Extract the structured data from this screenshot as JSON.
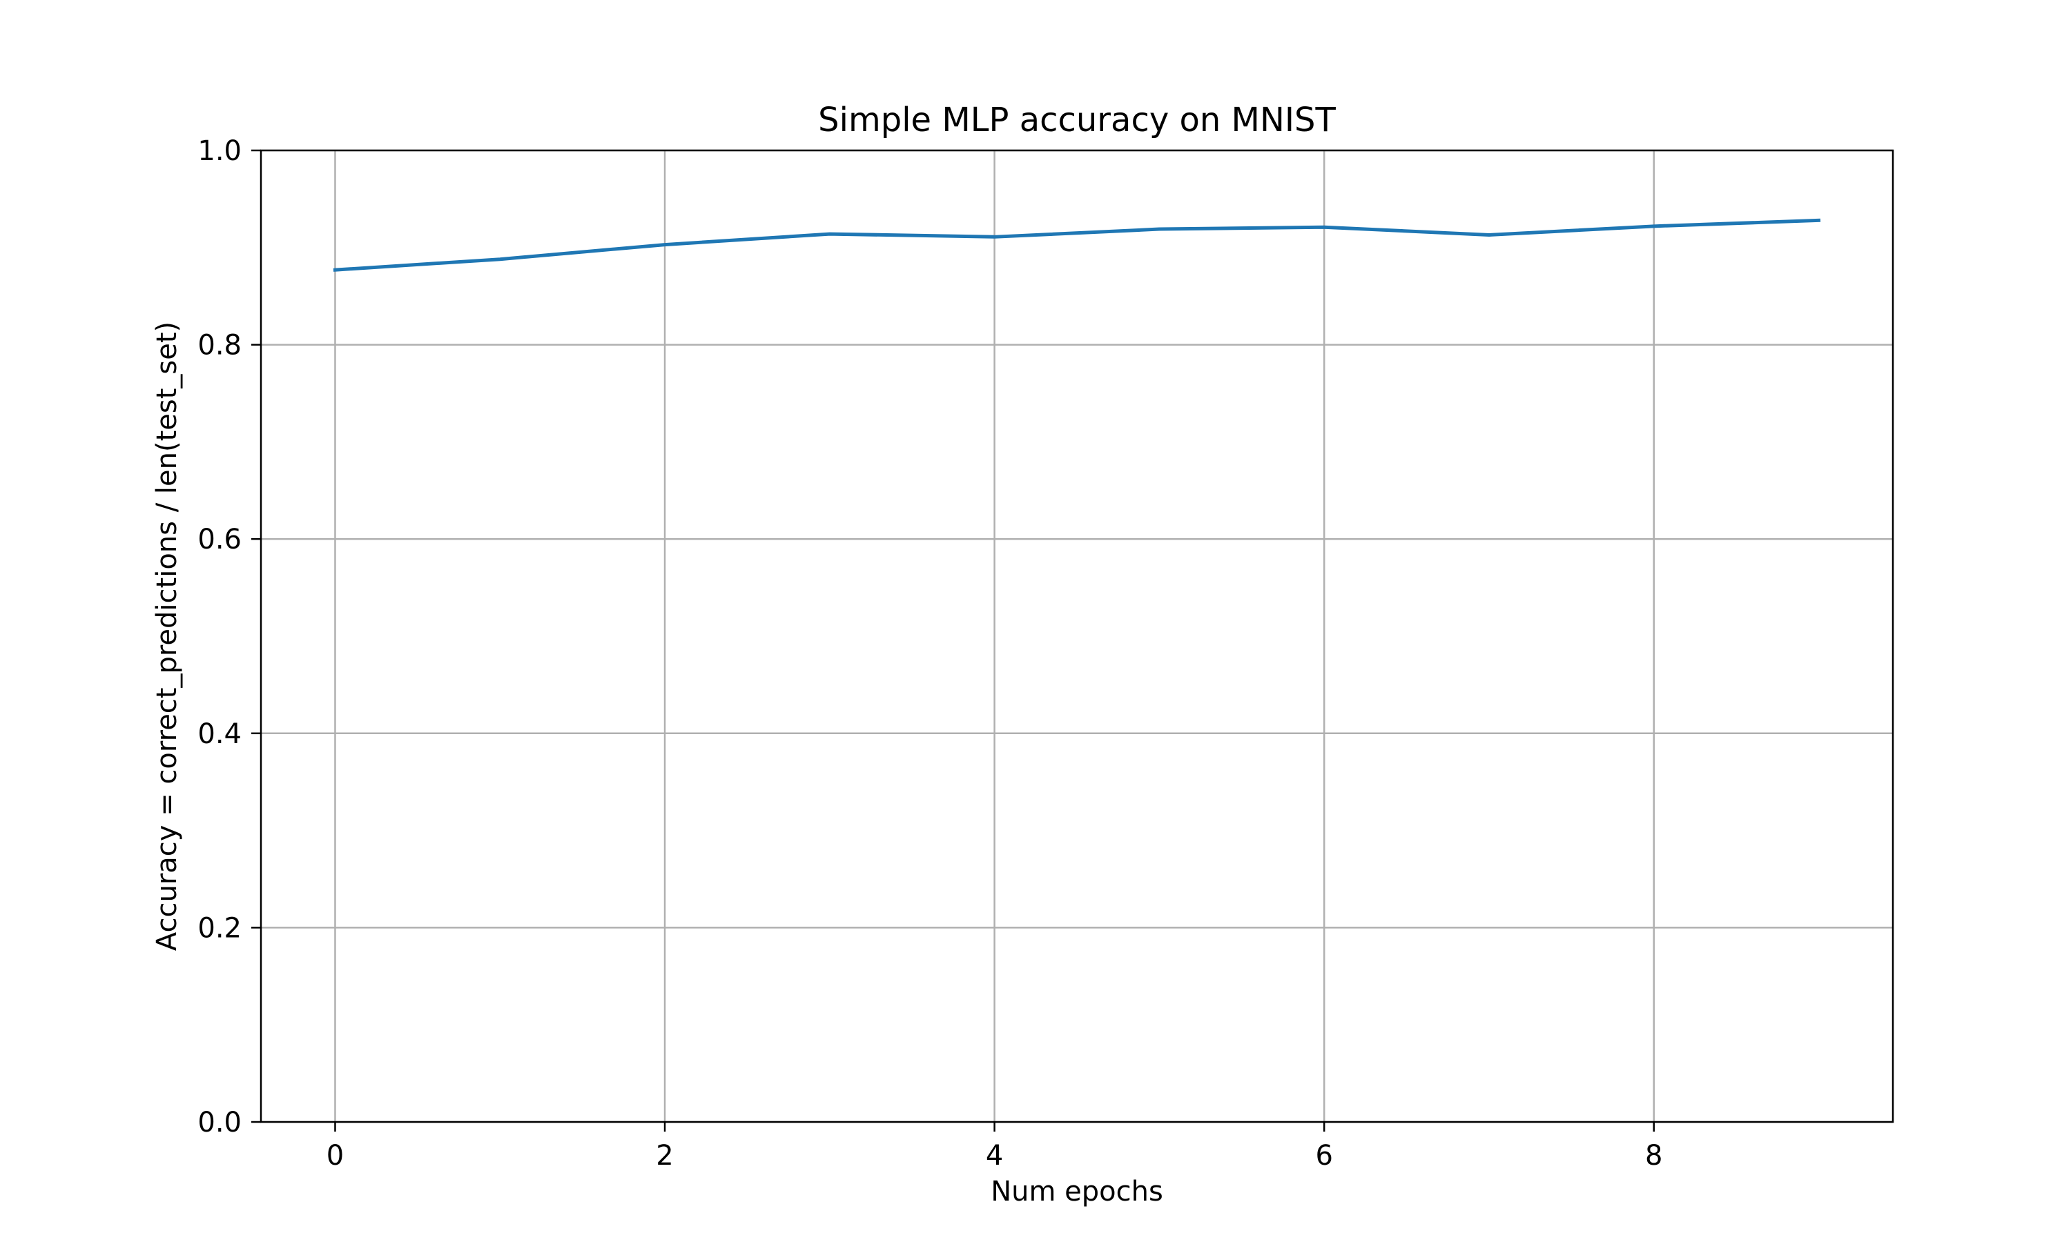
{
  "chart_data": {
    "type": "line",
    "title": "Simple MLP accuracy on MNIST",
    "xlabel": "Num epochs",
    "ylabel": "Accuracy = correct_predictions / len(test_set)",
    "x": [
      0,
      1,
      2,
      3,
      4,
      5,
      6,
      7,
      8,
      9
    ],
    "series": [
      {
        "name": "accuracy",
        "color": "#1f77b4",
        "values": [
          0.877,
          0.888,
          0.903,
          0.914,
          0.911,
          0.919,
          0.921,
          0.913,
          0.922,
          0.928
        ]
      }
    ],
    "xlim": [
      -0.45,
      9.45
    ],
    "ylim": [
      0.0,
      1.0
    ],
    "xticks": [
      0,
      2,
      4,
      6,
      8
    ],
    "xtick_labels": [
      "0",
      "2",
      "4",
      "6",
      "8"
    ],
    "yticks": [
      0.0,
      0.2,
      0.4,
      0.6,
      0.8,
      1.0
    ],
    "ytick_labels": [
      "0.0",
      "0.2",
      "0.4",
      "0.6",
      "0.8",
      "1.0"
    ],
    "grid": true,
    "legend": "none"
  }
}
